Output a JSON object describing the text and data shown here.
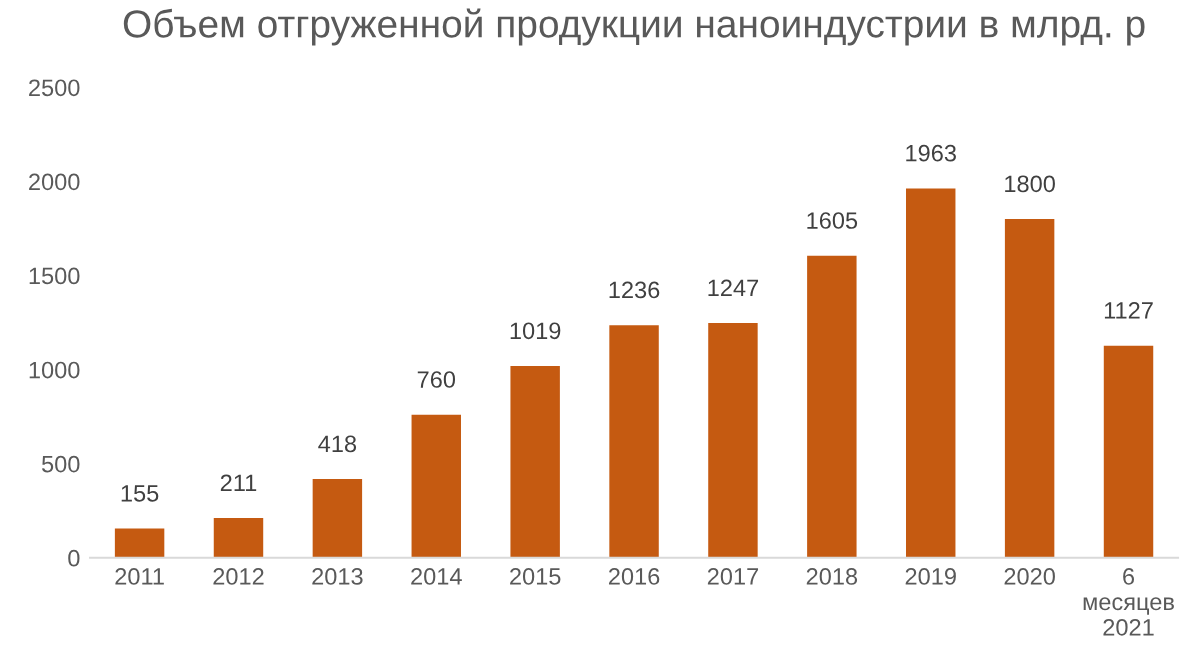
{
  "chart_data": {
    "type": "bar",
    "title": "Объем отгруженной продукции наноиндустрии в млрд. р",
    "categories": [
      "2011",
      "2012",
      "2013",
      "2014",
      "2015",
      "2016",
      "2017",
      "2018",
      "2019",
      "2020",
      "6\nмесяцев\n2021"
    ],
    "values": [
      155,
      211,
      418,
      760,
      1019,
      1236,
      1247,
      1605,
      1963,
      1800,
      1127
    ],
    "color": "#c55a11",
    "ylim": [
      0,
      2500
    ],
    "yticks": [
      0,
      500,
      1000,
      1500,
      2000,
      2500
    ],
    "data_labels": true,
    "grid": false
  }
}
